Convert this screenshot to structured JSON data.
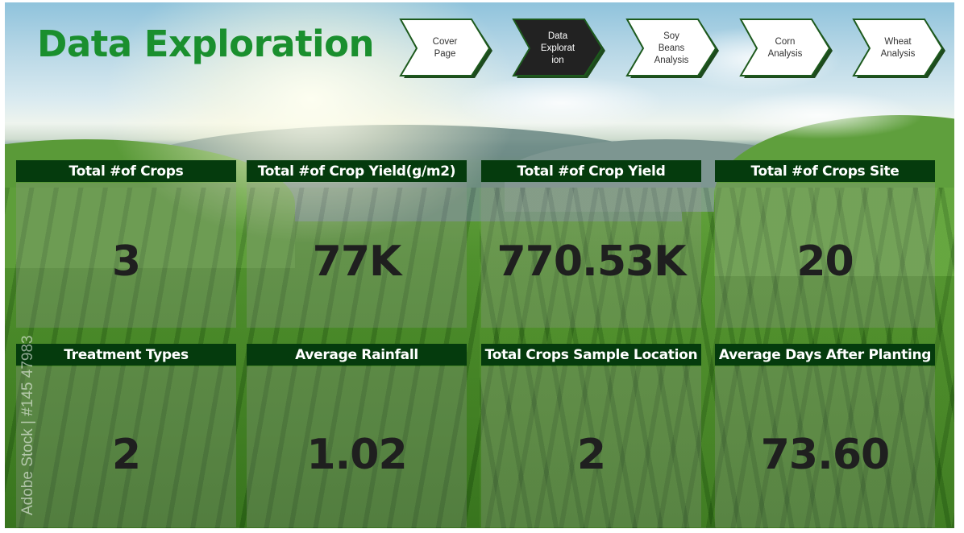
{
  "page": {
    "title": "Data Exploration"
  },
  "navigation": [
    {
      "label": "Cover\nPage",
      "active": false
    },
    {
      "label": "Data\nExplorat\nion",
      "active": true
    },
    {
      "label": "Soy\nBeans\nAnalysis",
      "active": false
    },
    {
      "label": "Corn\nAnalysis",
      "active": false
    },
    {
      "label": "Wheat\nAnalysis",
      "active": false
    }
  ],
  "kpis": [
    {
      "label": "Total #of Crops",
      "value": "3"
    },
    {
      "label": "Total #of Crop Yield(g/m2)",
      "value": "77K"
    },
    {
      "label": "Total #of Crop Yield",
      "value": "770.53K"
    },
    {
      "label": "Total #of Crops Site",
      "value": "20"
    },
    {
      "label": "Treatment Types",
      "value": "2"
    },
    {
      "label": "Average Rainfall",
      "value": "1.02"
    },
    {
      "label": "Total Crops Sample Location",
      "value": "2"
    },
    {
      "label": "Average Days After Planting",
      "value": "73.60"
    }
  ],
  "watermark": "Adobe Stock | #145 47983",
  "colors": {
    "title": "#1a8f2e",
    "header_bg": "#053b0d",
    "nav_active": "#222222",
    "nav_inactive": "#ffffff",
    "nav_border": "#1d5a1d"
  }
}
